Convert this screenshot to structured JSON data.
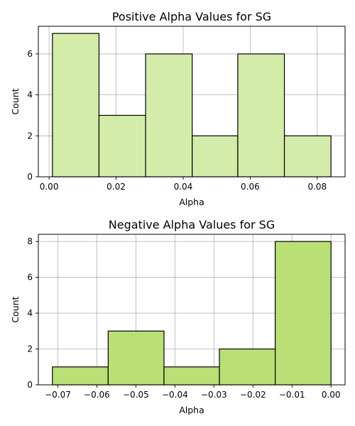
{
  "chart_data": [
    {
      "type": "bar",
      "title": "Positive Alpha Values for SG",
      "xlabel": "Alpha",
      "ylabel": "Count",
      "bin_edges": [
        0.001,
        0.0149,
        0.0288,
        0.0427,
        0.0563,
        0.0702,
        0.0841
      ],
      "values": [
        7,
        3,
        6,
        2,
        6,
        2
      ],
      "xlim": [
        -0.0032,
        0.0883
      ],
      "ylim": [
        0,
        7.35
      ],
      "xticks": [
        0.0,
        0.02,
        0.04,
        0.06,
        0.08
      ],
      "xtick_labels": [
        "0.00",
        "0.02",
        "0.04",
        "0.06",
        "0.08"
      ],
      "yticks": [
        0,
        2,
        4,
        6
      ],
      "ytick_labels": [
        "0",
        "2",
        "4",
        "6"
      ],
      "grid": true,
      "bar_color": "#d4ecaa"
    },
    {
      "type": "bar",
      "title": "Negative Alpha Values for SG",
      "xlabel": "Alpha",
      "ylabel": "Count",
      "bin_edges": [
        -0.0714,
        -0.0571,
        -0.0428,
        -0.0286,
        -0.0143,
        0.0
      ],
      "values": [
        1,
        3,
        1,
        2,
        8
      ],
      "xlim": [
        -0.075,
        0.0036
      ],
      "ylim": [
        0,
        8.4
      ],
      "xticks": [
        -0.07,
        -0.06,
        -0.05,
        -0.04,
        -0.03,
        -0.02,
        -0.01,
        0.0
      ],
      "xtick_labels": [
        "−0.07",
        "−0.06",
        "−0.05",
        "−0.04",
        "−0.03",
        "−0.02",
        "−0.01",
        "0.00"
      ],
      "yticks": [
        0,
        2,
        4,
        6,
        8
      ],
      "ytick_labels": [
        "0",
        "2",
        "4",
        "6",
        "8"
      ],
      "grid": true,
      "bar_color": "#b9df76"
    }
  ]
}
